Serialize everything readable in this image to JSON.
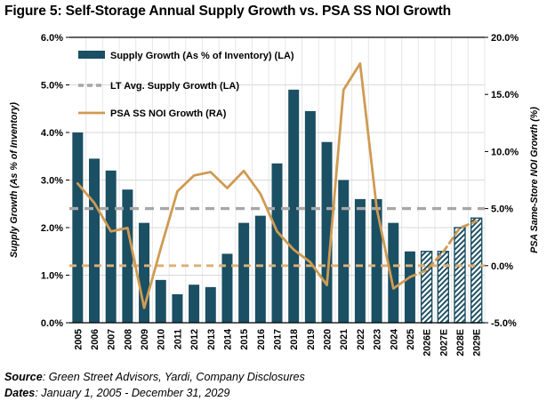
{
  "title": "Figure 5: Self-Storage Annual Supply Growth vs. PSA SS NOI Growth",
  "footer": {
    "source_label": "Source",
    "source_text": ": Green Street Advisors, Yardi, Company Disclosures",
    "dates_label": "Dates",
    "dates_text": ": January 1, 2005 - December 31, 2029"
  },
  "colors": {
    "bar": "#1b4f63",
    "bar_hatch_bg": "#ffffff",
    "noi_line": "#cf9b52",
    "noi_forecast_line": "#cf9b52",
    "lt_avg_line": "#a7a7a7",
    "zero_line": "#dcaf76",
    "gridline_h": "#d9d9d9",
    "gridline_v": "#e7e7e7",
    "axis_line": "#000000",
    "text": "#000000"
  },
  "chart_data": {
    "type": "bar",
    "subtype": "combo-bar-line-dual-axis",
    "categories": [
      "2005",
      "2006",
      "2007",
      "2008",
      "2009",
      "2010",
      "2011",
      "2012",
      "2013",
      "2014",
      "2015",
      "2016",
      "2017",
      "2018",
      "2019",
      "2020",
      "2021",
      "2022",
      "2023",
      "2024",
      "2025",
      "2026E",
      "2027E",
      "2028E",
      "2029E"
    ],
    "series": [
      {
        "name": "Supply Growth (As % of Inventory) (LA)",
        "type": "bar",
        "axis": "left",
        "values": [
          4.0,
          3.45,
          3.2,
          2.8,
          2.1,
          0.9,
          0.6,
          0.8,
          0.75,
          1.45,
          2.1,
          2.25,
          3.35,
          4.9,
          4.45,
          3.8,
          3.0,
          2.6,
          2.6,
          2.1,
          1.5,
          1.5,
          1.5,
          2.0,
          2.2
        ],
        "hatched_from_index": 21
      },
      {
        "name": "LT Avg. Supply Growth (LA)",
        "type": "horizontal-dashed-line",
        "axis": "left",
        "value": 2.4
      },
      {
        "name": "PSA SS NOI Growth (RA)",
        "type": "line",
        "axis": "right",
        "values": [
          7.2,
          5.5,
          3.0,
          3.3,
          -3.7,
          1.5,
          6.5,
          7.9,
          8.2,
          6.8,
          8.3,
          6.3,
          3.0,
          1.4,
          0.3,
          -1.7,
          15.4,
          17.7,
          5.0,
          -2.0,
          -1.0,
          -0.4,
          1.2,
          3.3,
          3.9
        ],
        "dashed_from_index": 20
      }
    ],
    "zero_reference_line": {
      "axis": "right",
      "value": 0
    },
    "left_axis": {
      "label": "Supply Growth (As % of Inventory)",
      "min": 0,
      "max": 6,
      "step": 1,
      "ticks": [
        "0.0%",
        "1.0%",
        "2.0%",
        "3.0%",
        "4.0%",
        "5.0%",
        "6.0%"
      ]
    },
    "right_axis": {
      "label": "PSA Same-Store NOI Growth (%)",
      "min": -5,
      "max": 20,
      "step": 5,
      "ticks": [
        "-5.0%",
        "0.0%",
        "5.0%",
        "10.0%",
        "15.0%",
        "20.0%"
      ]
    },
    "grid": true,
    "legend_position": "top-left-inside"
  }
}
